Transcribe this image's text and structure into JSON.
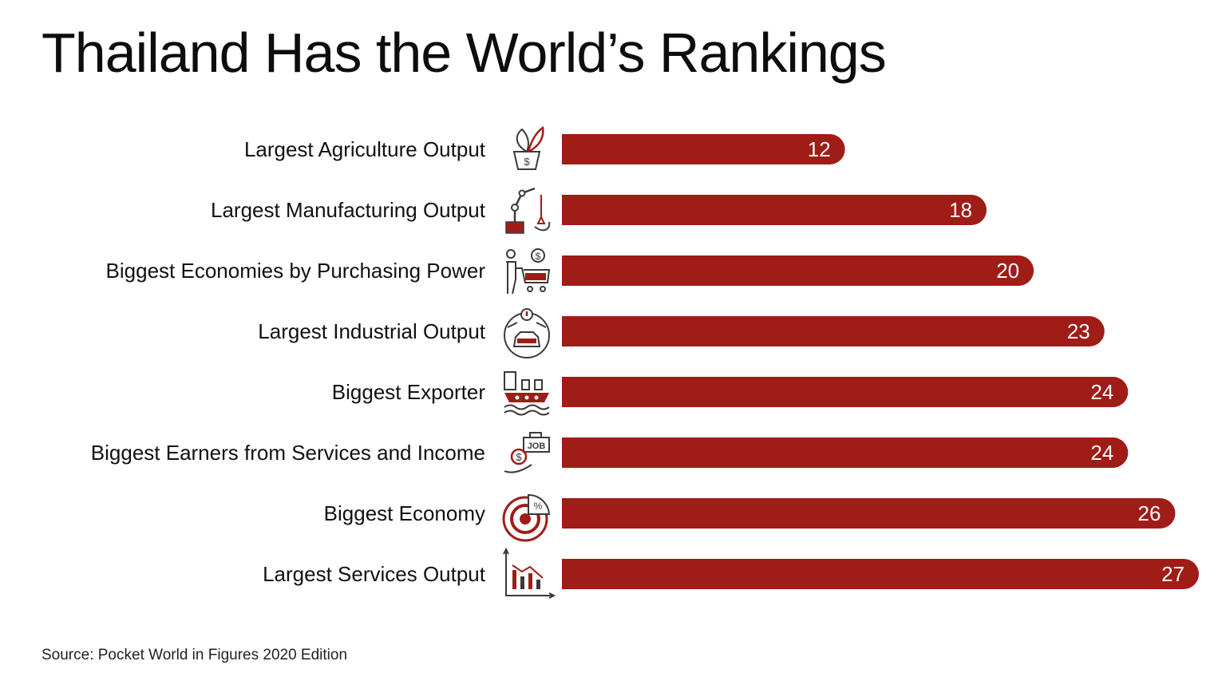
{
  "title": "Thailand Has the World’s Rankings",
  "source": "Source: Pocket World in Figures 2020 Edition",
  "colors": {
    "bar": "#a01c17",
    "bar_text": "#ffffff",
    "icon": "#a01c17",
    "icon_line": "#3a3a3a"
  },
  "chart_data": {
    "type": "bar",
    "orientation": "horizontal",
    "categories": [
      "Largest Agriculture Output",
      "Largest Manufacturing Output",
      "Biggest Economies by Purchasing Power",
      "Largest Industrial Output",
      "Biggest Exporter",
      "Biggest Earners from Services and Income",
      "Biggest Economy",
      "Largest Services Output"
    ],
    "values": [
      12,
      18,
      20,
      23,
      24,
      24,
      26,
      27
    ],
    "icons": [
      "plant-pot-dollar-icon",
      "robotic-arm-icon",
      "shopper-cart-icon",
      "industry-car-icon",
      "export-ship-icon",
      "job-income-icon",
      "economy-pie-icon",
      "services-bar-chart-icon"
    ],
    "xlim": [
      0,
      27
    ],
    "data_labels": true,
    "grid": false,
    "legend": "none"
  }
}
